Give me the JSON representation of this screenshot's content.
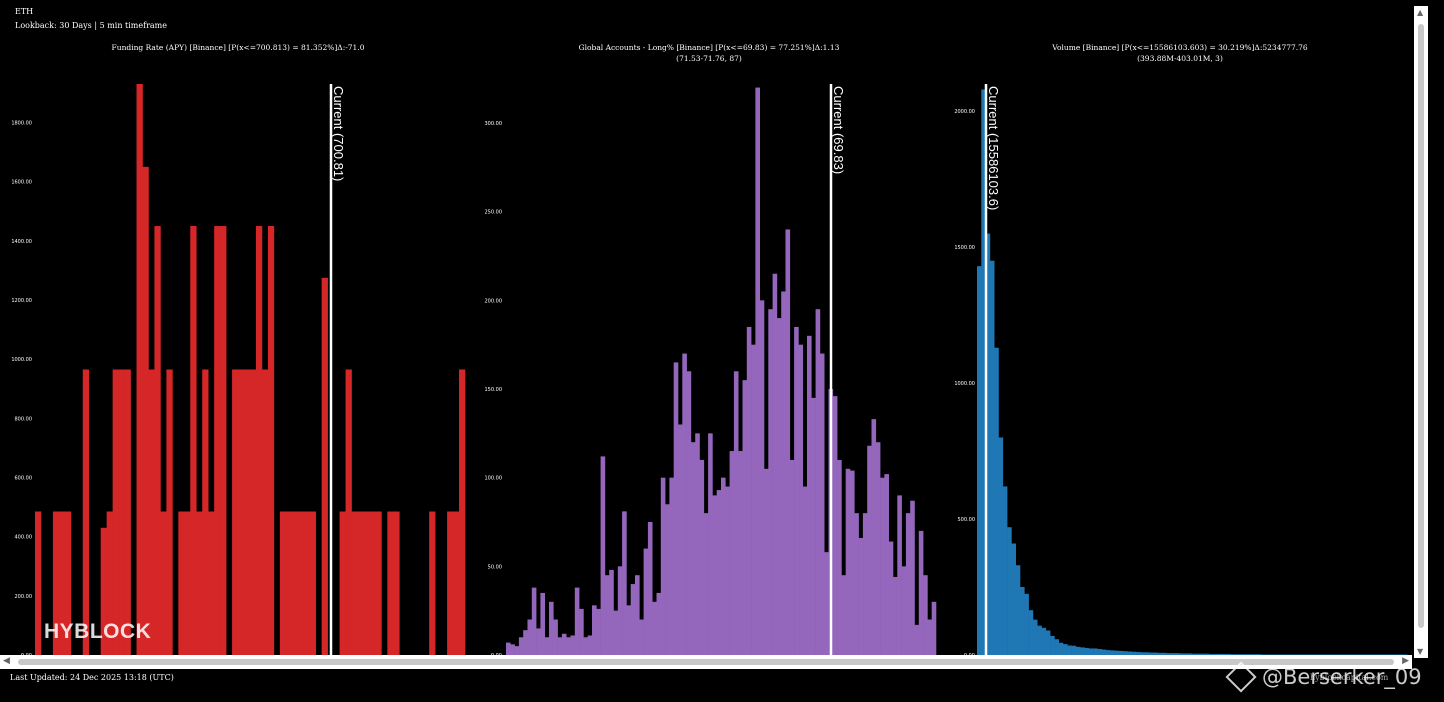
{
  "header": {
    "asset": "ETH",
    "lookback": "Lookback: 30 Days | 5 min timeframe"
  },
  "chart_data": [
    {
      "type": "bar",
      "title": "Funding Rate (APY) [Binance] [P(x<=700.813) = 81.352%]Δ:-71.0",
      "subtitle": "",
      "color": "#d62728",
      "ylim": [
        0,
        1930
      ],
      "yticks": [
        0,
        200,
        400,
        600,
        800,
        1000,
        1200,
        1400,
        1600,
        1800
      ],
      "ytick_labels": [
        "0.00",
        "200.00",
        "400.00",
        "600.00",
        "800.00",
        "1000.00",
        "1200.00",
        "1400.00",
        "1600.00",
        "1800.00"
      ],
      "current_value": 700.81,
      "current_label": "Current (700.81)",
      "values": [
        485,
        0,
        0,
        485,
        485,
        485,
        0,
        0,
        965,
        0,
        0,
        430,
        485,
        965,
        965,
        965,
        0,
        1930,
        1650,
        965,
        1450,
        485,
        965,
        0,
        485,
        485,
        1450,
        485,
        965,
        485,
        1450,
        1450,
        0,
        965,
        965,
        965,
        965,
        1450,
        965,
        1450,
        0,
        485,
        485,
        485,
        485,
        485,
        485,
        0,
        1275,
        0,
        0,
        485,
        965,
        485,
        485,
        485,
        485,
        485,
        0,
        485,
        485,
        0,
        0,
        0,
        0,
        0,
        485,
        0,
        0,
        485,
        485,
        965
      ]
    },
    {
      "type": "bar",
      "title": "Global Accounts - Long% [Binance] [P(x<=69.83) = 77.251%]Δ:1.13",
      "subtitle": "(71.53-71.76, 87)",
      "color": "#9467bd",
      "ylim": [
        0,
        322
      ],
      "yticks": [
        0,
        50,
        100,
        150,
        200,
        250,
        300
      ],
      "ytick_labels": [
        "0.00",
        "50.00",
        "100.00",
        "150.00",
        "200.00",
        "250.00",
        "300.00"
      ],
      "current_value": 69.83,
      "current_label": "Current (69.83)",
      "values": [
        7,
        6,
        5,
        10,
        14,
        20,
        38,
        15,
        35,
        10,
        30,
        20,
        10,
        12,
        10,
        11,
        38,
        26,
        10,
        11,
        28,
        26,
        112,
        45,
        48,
        25,
        50,
        81,
        28,
        40,
        45,
        20,
        60,
        75,
        30,
        35,
        100,
        85,
        100,
        165,
        130,
        170,
        160,
        120,
        125,
        110,
        80,
        125,
        90,
        93,
        100,
        95,
        115,
        160,
        115,
        155,
        185,
        175,
        320,
        200,
        105,
        195,
        215,
        190,
        205,
        240,
        110,
        185,
        175,
        95,
        180,
        145,
        195,
        170,
        58,
        150,
        146,
        110,
        45,
        105,
        104,
        80,
        66,
        80,
        118,
        133,
        120,
        100,
        102,
        64,
        44,
        90,
        50,
        80,
        87,
        17,
        70,
        45,
        20,
        30
      ]
    },
    {
      "type": "bar",
      "title": "Volume [Binance] [P(x<=15586103.603) = 30.219%]Δ:5234777.76",
      "subtitle": "(393.88M-403.01M, 3)",
      "color": "#1f77b4",
      "ylim": [
        0,
        2100
      ],
      "yticks": [
        0,
        500,
        1000,
        1500,
        2000
      ],
      "ytick_labels": [
        "0.00",
        "500.00",
        "1000.00",
        "1500.00",
        "2000.00"
      ],
      "current_value": 15586103.6,
      "current_label": "Current (15586103.6)",
      "values": [
        1430,
        2080,
        1550,
        1450,
        1130,
        800,
        620,
        470,
        410,
        330,
        250,
        225,
        165,
        130,
        108,
        100,
        90,
        70,
        58,
        45,
        40,
        35,
        34,
        30,
        28,
        26,
        24,
        24,
        22,
        20,
        18,
        17,
        16,
        15,
        14,
        13,
        12,
        11,
        10,
        10,
        9,
        9,
        8,
        8,
        7,
        7,
        7,
        6,
        6,
        6,
        5,
        5,
        5,
        5,
        4,
        4,
        4,
        4,
        4,
        3,
        3,
        3,
        3,
        3,
        3,
        3,
        2,
        2,
        2,
        2,
        2,
        2,
        2,
        2,
        2,
        2,
        2,
        2,
        2,
        2,
        2,
        2,
        2,
        2,
        2,
        2,
        2,
        2,
        2,
        2,
        2,
        2,
        2,
        2,
        2,
        2,
        2,
        2,
        2,
        2
      ]
    }
  ],
  "watermark_brand": "HYBLOCK",
  "footer": {
    "updated": "Last Updated: 24 Dec 2025 13:18 (UTC)",
    "powered": "hyblockcapital.com",
    "watermark_handle": "@Berserker_09"
  }
}
